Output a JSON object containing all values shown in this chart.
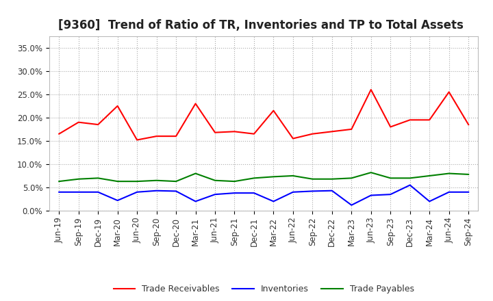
{
  "title": "[9360]  Trend of Ratio of TR, Inventories and TP to Total Assets",
  "x_labels": [
    "Jun-19",
    "Sep-19",
    "Dec-19",
    "Mar-20",
    "Jun-20",
    "Sep-20",
    "Dec-20",
    "Mar-21",
    "Jun-21",
    "Sep-21",
    "Dec-21",
    "Mar-22",
    "Jun-22",
    "Sep-22",
    "Dec-22",
    "Mar-23",
    "Jun-23",
    "Sep-23",
    "Dec-23",
    "Mar-24",
    "Jun-24",
    "Sep-24"
  ],
  "trade_receivables": [
    16.5,
    19.0,
    18.5,
    22.5,
    15.2,
    16.0,
    16.0,
    23.0,
    16.8,
    17.0,
    16.5,
    21.5,
    15.5,
    16.5,
    17.0,
    17.5,
    26.0,
    18.0,
    19.5,
    19.5,
    25.5,
    18.5
  ],
  "inventories": [
    4.0,
    4.0,
    4.0,
    2.2,
    4.0,
    4.3,
    4.2,
    2.0,
    3.5,
    3.8,
    3.8,
    2.0,
    4.0,
    4.2,
    4.3,
    1.2,
    3.3,
    3.5,
    5.5,
    2.0,
    4.0,
    4.0
  ],
  "trade_payables": [
    6.3,
    6.8,
    7.0,
    6.3,
    6.3,
    6.5,
    6.3,
    8.0,
    6.5,
    6.3,
    7.0,
    7.3,
    7.5,
    6.8,
    6.8,
    7.0,
    8.2,
    7.0,
    7.0,
    7.5,
    8.0,
    7.8
  ],
  "tr_color": "#ff0000",
  "inv_color": "#0000ff",
  "tp_color": "#008000",
  "ylim": [
    0,
    37.5
  ],
  "yticks": [
    0.0,
    5.0,
    10.0,
    15.0,
    20.0,
    25.0,
    30.0,
    35.0
  ],
  "bg_color": "#ffffff",
  "plot_bg_color": "#ffffff",
  "grid_color": "#aaaaaa",
  "legend_labels": [
    "Trade Receivables",
    "Inventories",
    "Trade Payables"
  ],
  "title_fontsize": 12,
  "tick_fontsize": 8.5,
  "legend_fontsize": 9
}
